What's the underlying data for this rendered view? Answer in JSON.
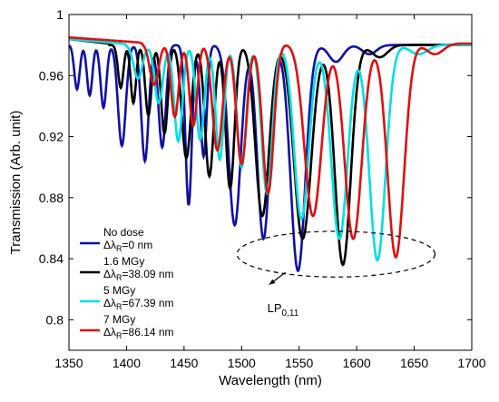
{
  "chart_data": {
    "type": "line",
    "xlabel": "Wavelength (nm)",
    "ylabel": "Transmission (Arb. unit)",
    "xlim": [
      1350,
      1700
    ],
    "ylim": [
      0.78,
      1.0
    ],
    "xticks": [
      1350,
      1400,
      1450,
      1500,
      1550,
      1600,
      1650,
      1700
    ],
    "xtick_labels": [
      "1350",
      "1400",
      "1450",
      "1500",
      "1550",
      "1600",
      "1650",
      "1700"
    ],
    "yticks": [
      0.8,
      0.84,
      0.88,
      0.92,
      0.96,
      1.0
    ],
    "ytick_labels": [
      "0.8",
      "0.84",
      "0.88",
      "0.92",
      "0.96",
      "1"
    ],
    "grid": false,
    "legend_position": "bottom-left",
    "series": [
      {
        "name": "No dose",
        "label_line1": "No dose",
        "label_pre": "Δλ",
        "label_sub": "R",
        "label_post": "=0 nm",
        "color": "#1010a8",
        "dips": [
          {
            "x": 1357,
            "y": 0.951
          },
          {
            "x": 1368,
            "y": 0.947
          },
          {
            "x": 1380,
            "y": 0.939
          },
          {
            "x": 1396,
            "y": 0.914
          },
          {
            "x": 1416,
            "y": 0.904
          },
          {
            "x": 1431,
            "y": 0.913
          },
          {
            "x": 1454,
            "y": 0.875
          },
          {
            "x": 1467,
            "y": 0.907
          },
          {
            "x": 1494,
            "y": 0.862
          },
          {
            "x": 1519,
            "y": 0.853
          },
          {
            "x": 1549,
            "y": 0.832
          },
          {
            "x": 1582,
            "y": 0.969
          },
          {
            "x": 1611,
            "y": 0.974
          }
        ],
        "start_y": 0.963,
        "end_y": 0.978,
        "base_y": 0.978,
        "peak_y": 0.98
      },
      {
        "name": "1.6 MGy",
        "label_line1": "1.6 MGy",
        "label_pre": "Δλ",
        "label_sub": "R",
        "label_post": "=38.09 nm",
        "color": "#000000",
        "dips": [
          {
            "x": 1395,
            "y": 0.952
          },
          {
            "x": 1406,
            "y": 0.942
          },
          {
            "x": 1419,
            "y": 0.934
          },
          {
            "x": 1433,
            "y": 0.922
          },
          {
            "x": 1452,
            "y": 0.906
          },
          {
            "x": 1472,
            "y": 0.894
          },
          {
            "x": 1490,
            "y": 0.886
          },
          {
            "x": 1518,
            "y": 0.868
          },
          {
            "x": 1553,
            "y": 0.853
          },
          {
            "x": 1588,
            "y": 0.836
          },
          {
            "x": 1620,
            "y": 0.972
          }
        ],
        "start_y": 0.984,
        "end_y": 0.979,
        "base_y": 0.979,
        "peak_y": 0.98
      },
      {
        "name": "5 MGy",
        "label_line1": "5 MGy",
        "label_pre": "Δλ",
        "label_sub": "R",
        "label_post": "=67.39 nm",
        "color": "#00e0e0",
        "dips": [
          {
            "x": 1410,
            "y": 0.958
          },
          {
            "x": 1428,
            "y": 0.942
          },
          {
            "x": 1445,
            "y": 0.917
          },
          {
            "x": 1464,
            "y": 0.918
          },
          {
            "x": 1481,
            "y": 0.905
          },
          {
            "x": 1500,
            "y": 0.9
          },
          {
            "x": 1522,
            "y": 0.883
          },
          {
            "x": 1552,
            "y": 0.866
          },
          {
            "x": 1585,
            "y": 0.853
          },
          {
            "x": 1618,
            "y": 0.839
          },
          {
            "x": 1654,
            "y": 0.974
          }
        ],
        "start_y": 0.984,
        "end_y": 0.98,
        "base_y": 0.98,
        "peak_y": 0.98
      },
      {
        "name": "7 MGy",
        "label_line1": "7 MGy",
        "label_pre": "Δλ",
        "label_sub": "R",
        "label_post": "=86.14 nm",
        "color": "#e01010",
        "dips": [
          {
            "x": 1424,
            "y": 0.954
          },
          {
            "x": 1442,
            "y": 0.933
          },
          {
            "x": 1458,
            "y": 0.927
          },
          {
            "x": 1479,
            "y": 0.911
          },
          {
            "x": 1500,
            "y": 0.902
          },
          {
            "x": 1523,
            "y": 0.883
          },
          {
            "x": 1562,
            "y": 0.868
          },
          {
            "x": 1597,
            "y": 0.853
          },
          {
            "x": 1634,
            "y": 0.841
          },
          {
            "x": 1668,
            "y": 0.974
          }
        ],
        "start_y": 0.985,
        "end_y": 0.979,
        "base_y": 0.979,
        "peak_y": 0.981
      }
    ],
    "annotation": {
      "text_main": "LP",
      "text_sub": "0,11",
      "ellipse_center": {
        "x": 1582,
        "y": 0.843
      },
      "ellipse_radii": {
        "x": 86,
        "y": 0.015
      },
      "arrow_from": {
        "x": 1538,
        "y": 0.831
      },
      "arrow_to": {
        "x": 1524,
        "y": 0.823
      },
      "text_anchor": {
        "x": 1536,
        "y": 0.805
      }
    }
  }
}
